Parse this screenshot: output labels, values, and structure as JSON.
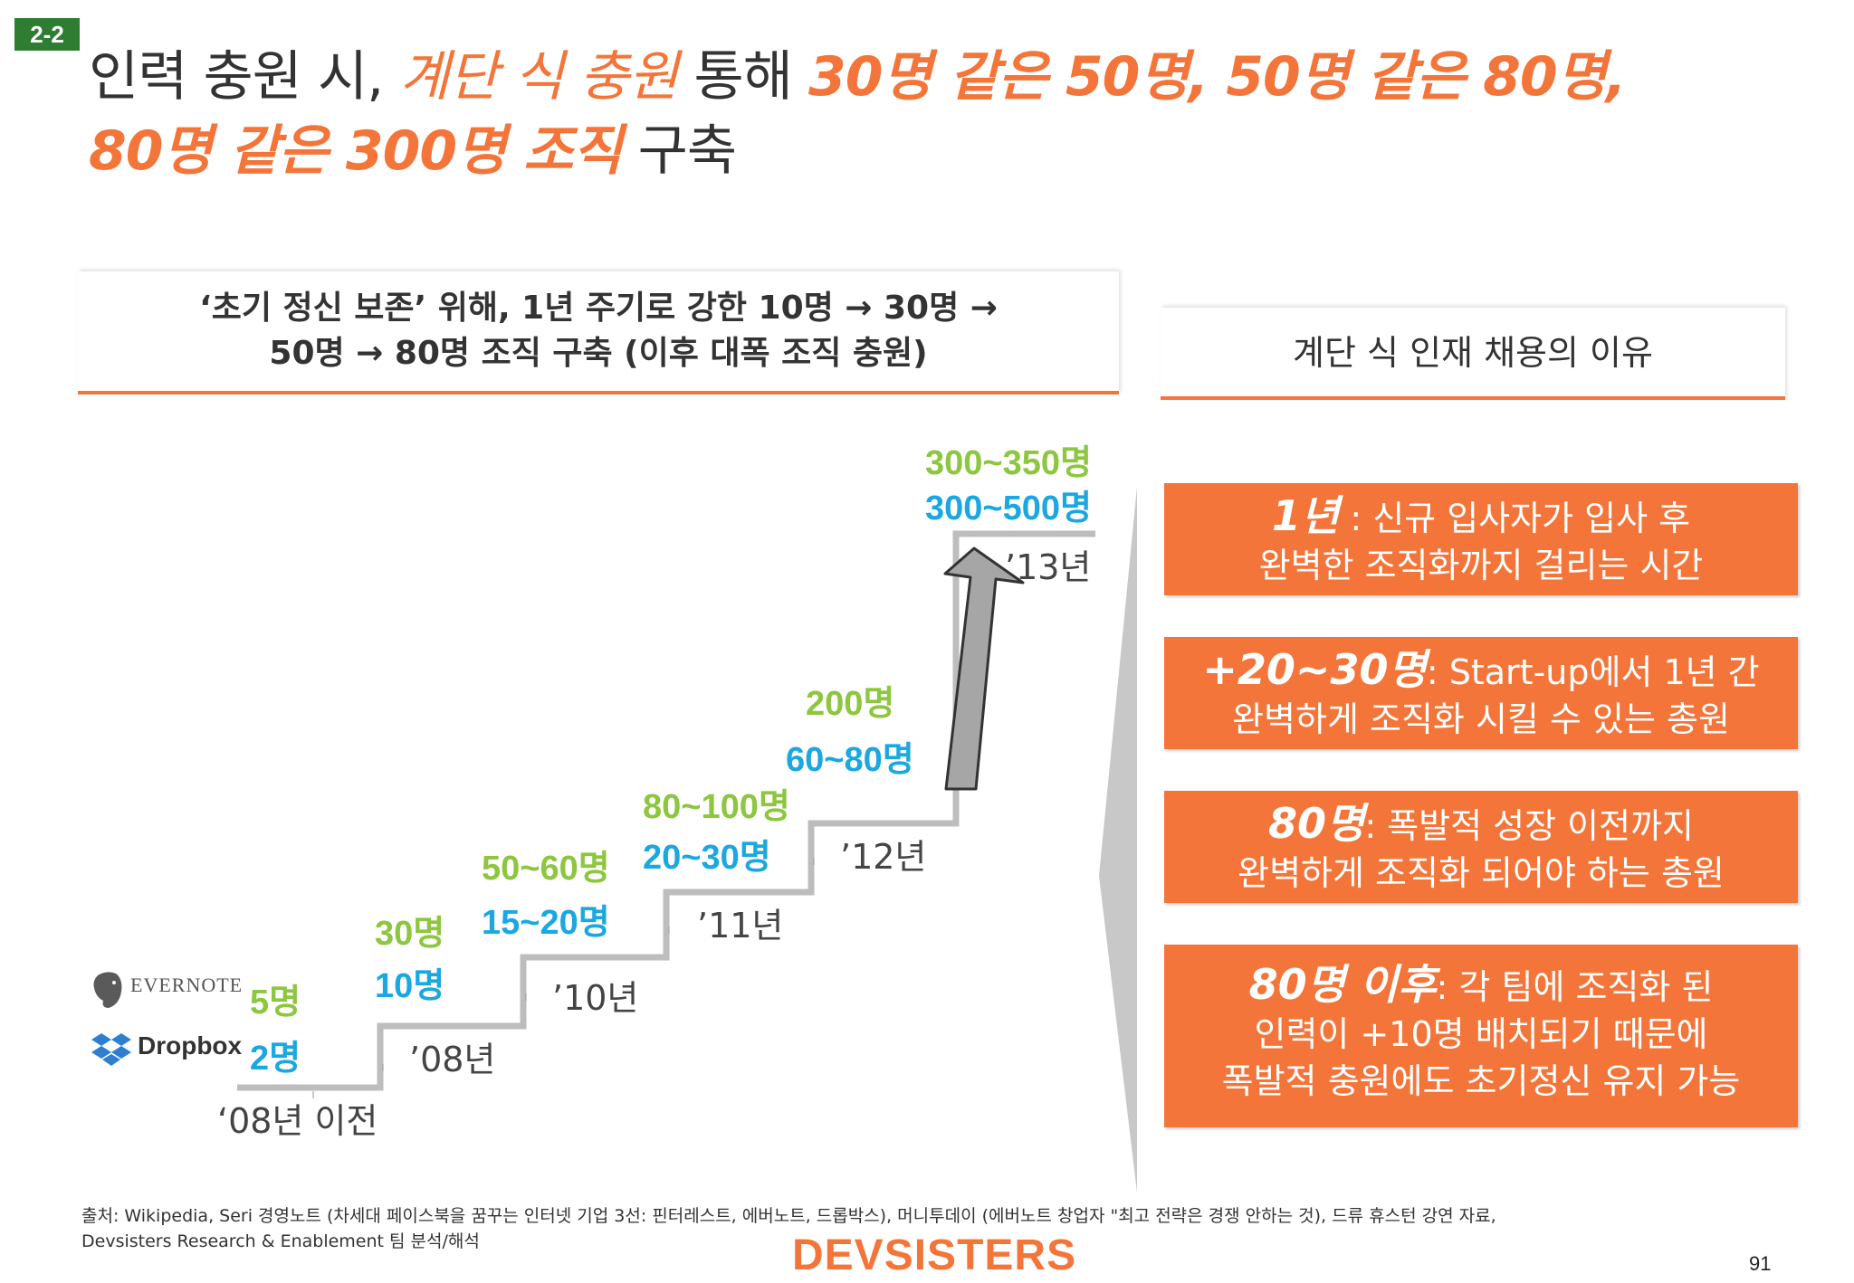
{
  "badge": "2-2",
  "title": {
    "part1": "인력 충원 시, ",
    "part2": "계단 식 충원",
    "part3": " 통해 ",
    "part4": "30명 같은 50명, 50명 같은 80명,",
    "part5": "80명 같은 300명 조직",
    "part6": " 구축"
  },
  "left_header": {
    "line1": "‘초기 정신 보존’ 위해, 1년 주기로 강한 10명 → 30명 →",
    "line2": "50명 → 80명 조직 구축 (이후 대폭 조직 충원)"
  },
  "right_header": "계단 식 인재 채용의 이유",
  "staircase": {
    "logos": {
      "evernote": "EVERNOTE",
      "dropbox": "Dropbox"
    },
    "steps": [
      {
        "year": "‘08년 이전",
        "green": "5명",
        "blue": "2명"
      },
      {
        "year": "’08년",
        "green": "30명",
        "blue": "10명"
      },
      {
        "year": "’10년",
        "green": "50~60명",
        "blue": "15~20명"
      },
      {
        "year": "’11년",
        "green": "80~100명",
        "blue": "20~30명"
      },
      {
        "year": "’12년",
        "green": "200명",
        "blue": "60~80명"
      },
      {
        "year": "’13년",
        "green": "300~350명",
        "blue": "300~500명"
      }
    ]
  },
  "reasons": [
    {
      "key": "1년",
      "text1": " : 신규 입사자가 입사 후",
      "text2": "완벽한 조직화까지 걸리는 시간"
    },
    {
      "key": "+20~30명",
      "text1": ": Start-up에서 1년 간",
      "text2": "완벽하게 조직화 시킬 수 있는 총원"
    },
    {
      "key": "80명",
      "text1": ": 폭발적 성장 이전까지",
      "text2": "완벽하게 조직화 되어야 하는 총원"
    },
    {
      "key": "80명 이후",
      "text1": ": 각 팀에 조직화 된",
      "text2": "인력이 +10명 배치되기 때문에",
      "text3": "폭발적 충원에도 초기정신 유지 가능"
    }
  ],
  "source": {
    "line1": "출처: Wikipedia, Seri 경영노트 (차세대 페이스북을 꿈꾸는 인터넷 기업 3선: 핀터레스트, 에버노트, 드롭박스), 머니투데이 (에버노트 창업자 \"최고 전략은 경쟁 안하는 것), 드류 휴스턴 강연 자료,",
    "line2": "Devsisters Research & Enablement 팀 분석/해석"
  },
  "footer_logo": "DEVSISTERS",
  "page_number": "91",
  "colors": {
    "orange": "#f4753a",
    "green": "#8dc63f",
    "blue": "#1ba8e0",
    "badge": "#2e7d32"
  }
}
